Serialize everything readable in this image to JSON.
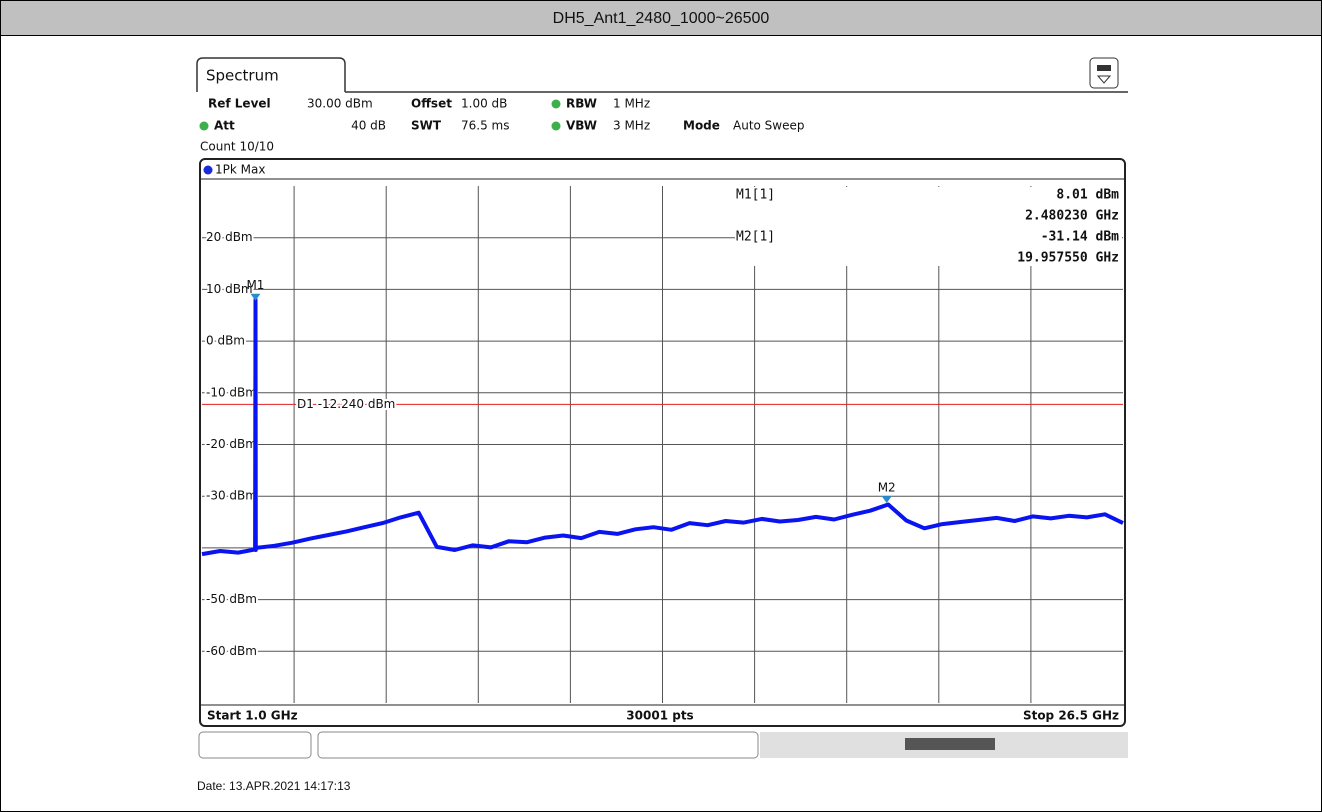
{
  "chart_data": {
    "type": "line",
    "title": "DH5_Ant1_2480_1000~26500",
    "trace_label": "1Pk Max",
    "x": [
      1.0,
      1.5,
      2.0,
      2.47,
      2.48,
      2.49,
      2.5,
      3.0,
      3.5,
      4.0,
      4.5,
      5.0,
      5.5,
      6.0,
      6.5,
      7.0,
      7.5,
      8.0,
      8.5,
      9.0,
      9.5,
      10.0,
      10.5,
      11.0,
      11.5,
      12.0,
      12.5,
      13.0,
      13.5,
      14.0,
      14.5,
      15.0,
      15.5,
      16.0,
      16.5,
      17.0,
      17.5,
      18.0,
      18.5,
      19.0,
      19.5,
      20.0,
      20.5,
      21.0,
      21.5,
      22.0,
      22.5,
      23.0,
      23.5,
      24.0,
      24.5,
      25.0,
      25.5,
      26.0,
      26.5
    ],
    "series": [
      {
        "name": "1Pk Max",
        "color": "#0a14f0",
        "values": [
          -41.2,
          -40.6,
          -40.9,
          -40.3,
          8.0,
          -40.4,
          -40.0,
          -39.6,
          -39.0,
          -38.2,
          -37.5,
          -36.8,
          -36.0,
          -35.2,
          -34.1,
          -33.2,
          -39.8,
          -40.4,
          -39.5,
          -39.9,
          -38.7,
          -38.9,
          -38.0,
          -37.6,
          -38.1,
          -36.9,
          -37.3,
          -36.4,
          -36.0,
          -36.5,
          -35.2,
          -35.6,
          -34.8,
          -35.1,
          -34.4,
          -34.9,
          -34.6,
          -34.0,
          -34.5,
          -33.6,
          -32.8,
          -31.6,
          -34.7,
          -36.2,
          -35.4,
          -35.0,
          -34.6,
          -34.2,
          -34.8,
          -33.9,
          -34.3,
          -33.8,
          -34.1,
          -33.5,
          -35.2
        ]
      }
    ],
    "xlim": [
      1.0,
      26.5
    ],
    "ylim": [
      -70,
      30
    ],
    "yticks": [
      {
        "value": 20,
        "label": "20 dBm"
      },
      {
        "value": 10,
        "label": "10 dBm"
      },
      {
        "value": 0,
        "label": "0 dBm"
      },
      {
        "value": -10,
        "label": "-10 dBm"
      },
      {
        "value": -20,
        "label": "-20 dBm"
      },
      {
        "value": -30,
        "label": "-30 dBm"
      },
      {
        "value": -50,
        "label": "-50 dBm"
      },
      {
        "value": -60,
        "label": "-60 dBm"
      }
    ],
    "grid": true,
    "display_line": {
      "label": "D1 -12.240 dBm",
      "value": -12.24,
      "color": "#e02020"
    },
    "markers": [
      {
        "label": "M1",
        "name": "M1[1]",
        "x": 2.48023,
        "y": 8.01,
        "y_label": "8.01 dBm",
        "x_label": "2.480230 GHz"
      },
      {
        "label": "M2",
        "name": "M2[1]",
        "x": 19.95755,
        "y": -31.14,
        "y_label": "-31.14 dBm",
        "x_label": "19.957550 GHz"
      }
    ],
    "marker_color": "#2a8ccc",
    "start_label": "Start 1.0 GHz",
    "points_label": "30001 pts",
    "stop_label": "Stop 26.5 GHz"
  },
  "instrument": {
    "tab": "Spectrum",
    "ref_level_key": "Ref Level",
    "ref_level": "30.00 dBm",
    "offset_key": "Offset",
    "offset": "1.00 dB",
    "rbw_key": "RBW",
    "rbw": "1 MHz",
    "att_key": "Att",
    "att": "40 dB",
    "swt_key": "SWT",
    "swt": "76.5 ms",
    "vbw_key": "VBW",
    "vbw": "3 MHz",
    "mode_key": "Mode",
    "mode": "Auto Sweep",
    "count": "Count 10/10"
  },
  "footer": {
    "date": "Date: 13.APR.2021  14:17:13"
  }
}
